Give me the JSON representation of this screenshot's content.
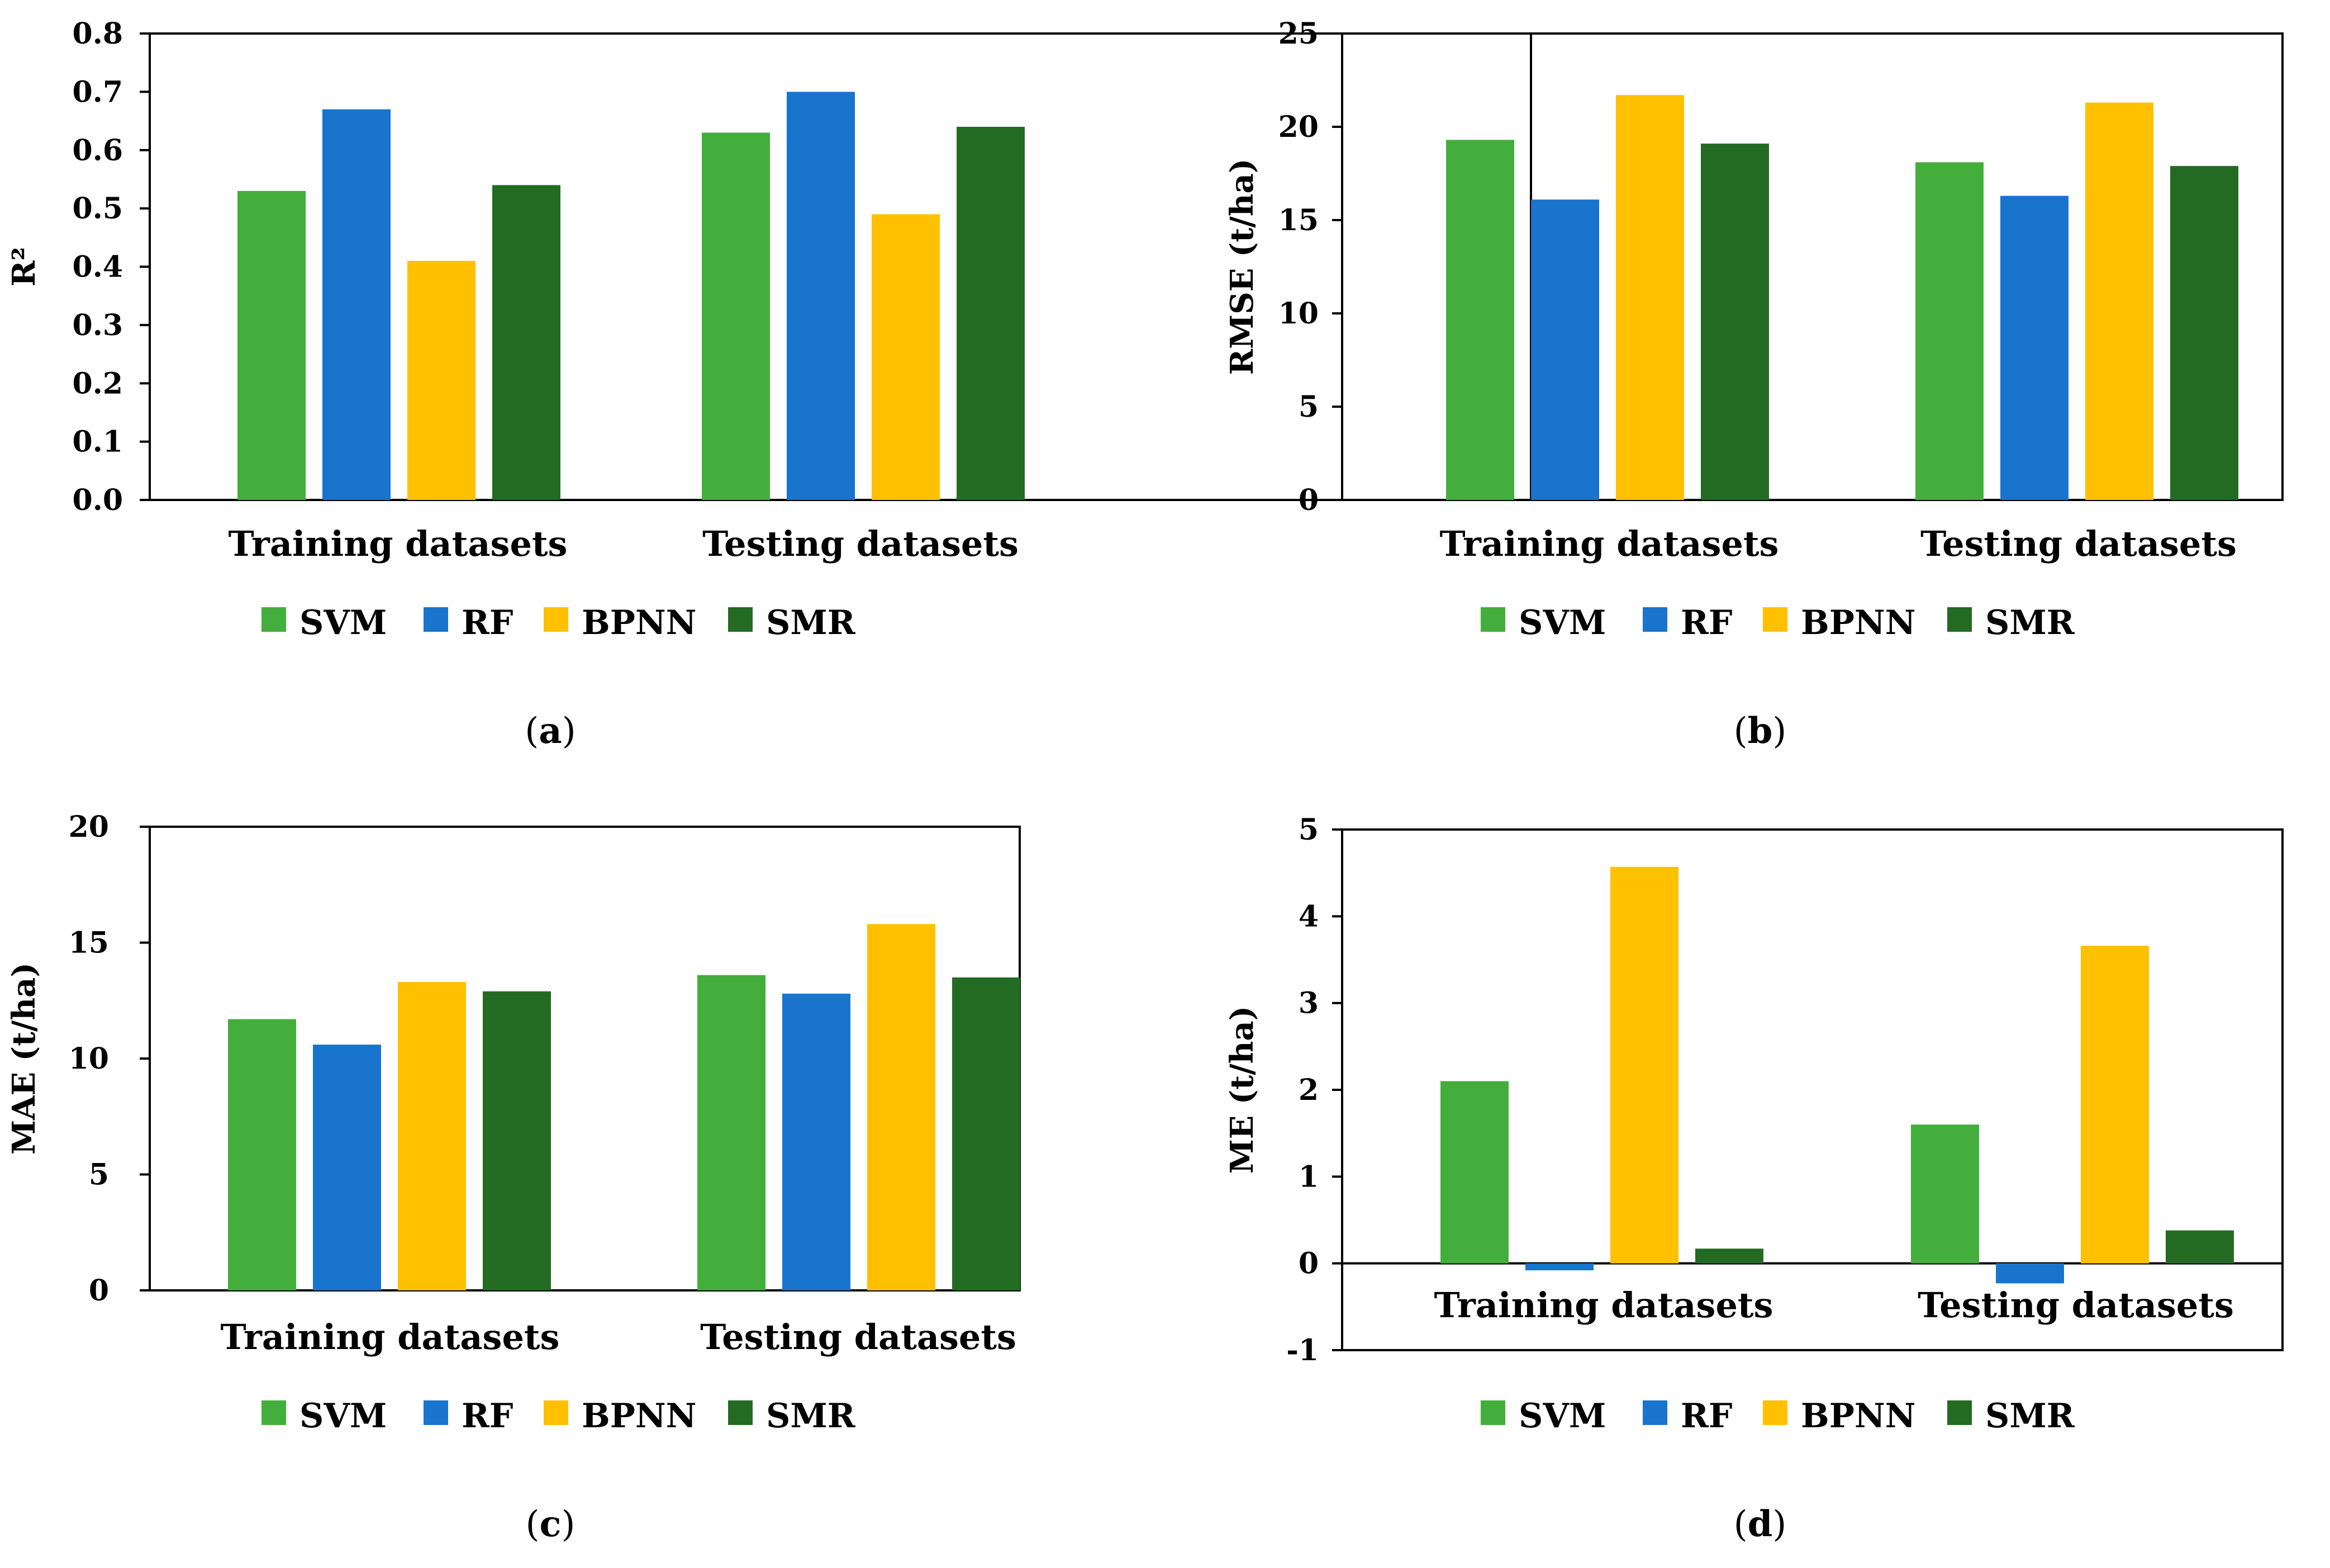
{
  "colors": {
    "SVM": "#43ae3c",
    "RF": "#1874cd",
    "BPNN": "#ffc000",
    "SMR": "#236b23"
  },
  "chart_data": [
    {
      "type": "bar",
      "panel": "a",
      "categories": [
        "Training datasets",
        "Testing datasets"
      ],
      "series": [
        {
          "name": "SVM",
          "values": [
            0.53,
            0.63
          ]
        },
        {
          "name": "RF",
          "values": [
            0.67,
            0.7
          ]
        },
        {
          "name": "BPNN",
          "values": [
            0.41,
            0.49
          ]
        },
        {
          "name": "SMR",
          "values": [
            0.54,
            0.64
          ]
        }
      ],
      "ylabel": "R²",
      "ylim": [
        0,
        0.8
      ],
      "yticks": [
        "0.0",
        "0.1",
        "0.2",
        "0.3",
        "0.4",
        "0.5",
        "0.6",
        "0.7",
        "0.8"
      ],
      "legend_position": "bottom",
      "grid": false
    },
    {
      "type": "bar",
      "panel": "b",
      "categories": [
        "Training datasets",
        "Testing datasets"
      ],
      "series": [
        {
          "name": "SVM",
          "values": [
            19.3,
            18.1
          ]
        },
        {
          "name": "RF",
          "values": [
            16.1,
            16.3
          ]
        },
        {
          "name": "BPNN",
          "values": [
            21.7,
            21.3
          ]
        },
        {
          "name": "SMR",
          "values": [
            19.1,
            17.9
          ]
        }
      ],
      "ylabel": "RMSE (t/ha)",
      "ylim": [
        0,
        25
      ],
      "yticks": [
        "0",
        "5",
        "10",
        "15",
        "20",
        "25"
      ],
      "legend_position": "bottom",
      "grid": false
    },
    {
      "type": "bar",
      "panel": "c",
      "categories": [
        "Training datasets",
        "Testing datasets"
      ],
      "series": [
        {
          "name": "SVM",
          "values": [
            11.7,
            13.6
          ]
        },
        {
          "name": "RF",
          "values": [
            10.6,
            12.8
          ]
        },
        {
          "name": "BPNN",
          "values": [
            13.3,
            15.8
          ]
        },
        {
          "name": "SMR",
          "values": [
            12.9,
            13.5
          ]
        }
      ],
      "ylabel": "MAE (t/ha)",
      "ylim": [
        0,
        20
      ],
      "yticks": [
        "0",
        "5",
        "10",
        "15",
        "20"
      ],
      "legend_position": "bottom",
      "grid": false
    },
    {
      "type": "bar",
      "panel": "d",
      "categories": [
        "Training datasets",
        "Testing datasets"
      ],
      "series": [
        {
          "name": "SVM",
          "values": [
            2.1,
            1.6
          ]
        },
        {
          "name": "RF",
          "values": [
            -0.08,
            -0.23
          ]
        },
        {
          "name": "BPNN",
          "values": [
            4.57,
            3.66
          ]
        },
        {
          "name": "SMR",
          "values": [
            0.17,
            0.38
          ]
        }
      ],
      "ylabel": "ME (t/ha)",
      "ylim": [
        -1,
        5
      ],
      "yticks": [
        "-1",
        "0",
        "1",
        "2",
        "3",
        "4",
        "5"
      ],
      "legend_position": "bottom",
      "grid": false
    }
  ]
}
